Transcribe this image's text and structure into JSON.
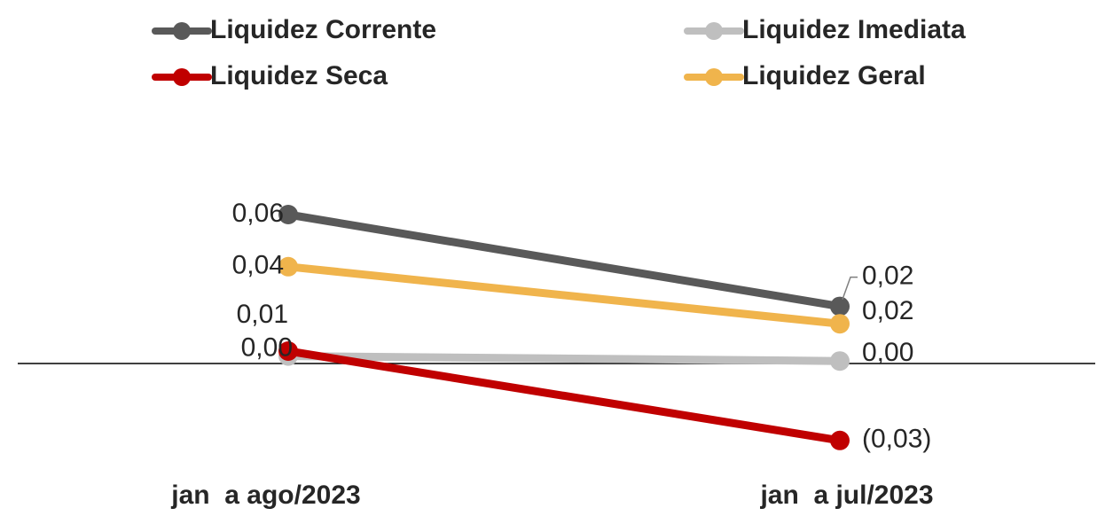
{
  "chart_data": {
    "type": "line",
    "categories": [
      "jan  a ago/2023",
      "jan  a jul/2023"
    ],
    "series": [
      {
        "name": "Liquidez Corrente",
        "color": "#595959",
        "values": [
          0.06,
          0.023
        ],
        "value_labels": [
          "0,06",
          "0,02"
        ]
      },
      {
        "name": "Liquidez Imediata",
        "color": "#bfbfbf",
        "values": [
          0.003,
          0.001
        ],
        "value_labels": [
          "0,00",
          "0,00"
        ]
      },
      {
        "name": "Liquidez Seca",
        "color": "#c00000",
        "values": [
          0.005,
          -0.031
        ],
        "value_labels": [
          "0,01",
          "(0,03)"
        ]
      },
      {
        "name": "Liquidez Geral",
        "color": "#f0b44c",
        "values": [
          0.039,
          0.016
        ],
        "value_labels": [
          "0,04",
          "0,02"
        ]
      }
    ],
    "ylim": [
      -0.045,
      0.075
    ]
  }
}
